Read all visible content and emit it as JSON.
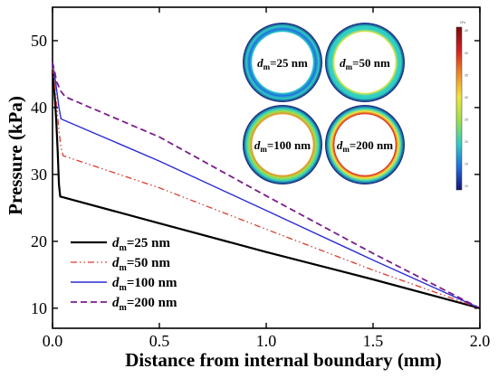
{
  "chart_data": {
    "type": "line",
    "xlabel": "Distance from internal boundary (mm)",
    "ylabel": "Pressure (kPa)",
    "xlim": [
      0,
      2.0
    ],
    "ylim": [
      7,
      55
    ],
    "xticks": [
      0.0,
      0.5,
      1.0,
      1.5,
      2.0
    ],
    "xtick_labels": [
      "0.0",
      "0.5",
      "1.0",
      "1.5",
      "2.0"
    ],
    "yticks": [
      10,
      20,
      30,
      40,
      50
    ],
    "ytick_labels": [
      "10",
      "20",
      "30",
      "40",
      "50"
    ],
    "grid": false,
    "legend_position": "bottom-left",
    "series": [
      {
        "name_main": "d",
        "name_sub": "m",
        "name_rest": "=25 nm",
        "color": "#000000",
        "dash": "",
        "width": 2.2,
        "x": [
          0.0,
          0.006,
          0.012,
          0.018,
          0.024,
          0.03,
          0.036,
          0.5,
          1.0,
          1.5,
          2.0
        ],
        "y": [
          45.6,
          43.5,
          41.0,
          37.8,
          33.5,
          28.5,
          26.7,
          22.7,
          18.4,
          14.3,
          10.0
        ]
      },
      {
        "name_main": "d",
        "name_sub": "m",
        "name_rest": "=50 nm",
        "color": "#d83b2c",
        "dash": "7,3,1.5,3,1.5,3",
        "width": 1.3,
        "x": [
          0.0,
          0.01,
          0.02,
          0.03,
          0.04,
          0.05,
          0.5,
          1.0,
          1.5,
          2.0
        ],
        "y": [
          46.0,
          43.5,
          40.2,
          36.5,
          34.0,
          32.8,
          28.0,
          21.8,
          15.7,
          10.0
        ]
      },
      {
        "name_main": "d",
        "name_sub": "m",
        "name_rest": "=100 nm",
        "color": "#2b2bd6",
        "dash": "",
        "width": 1.4,
        "x": [
          0.0,
          0.01,
          0.02,
          0.03,
          0.04,
          0.5,
          1.0,
          1.5,
          2.0
        ],
        "y": [
          46.4,
          44.8,
          42.5,
          40.0,
          38.3,
          32.0,
          24.6,
          17.2,
          10.0
        ]
      },
      {
        "name_main": "d",
        "name_sub": "m",
        "name_rest": "=200 nm",
        "color": "#7a1e8c",
        "dash": "7,4",
        "width": 1.8,
        "x": [
          0.0,
          0.01,
          0.02,
          0.04,
          0.06,
          0.5,
          1.0,
          1.5,
          2.0
        ],
        "y": [
          46.8,
          45.3,
          43.8,
          42.4,
          41.6,
          35.6,
          26.8,
          18.2,
          10.0
        ]
      }
    ]
  },
  "inset": {
    "rings": [
      {
        "label_main": "d",
        "label_sub": "m",
        "label_rest": "=25 nm",
        "level": 0.35
      },
      {
        "label_main": "d",
        "label_sub": "m",
        "label_rest": "=50 nm",
        "level": 0.5
      },
      {
        "label_main": "d",
        "label_sub": "m",
        "label_rest": "=100 nm",
        "level": 0.7
      },
      {
        "label_main": "d",
        "label_sub": "m",
        "label_rest": "=200 nm",
        "level": 0.85
      }
    ],
    "colorbar": {
      "unit": "kPa",
      "tick_labels": [
        "45",
        "40",
        "35",
        "30",
        "25",
        "20",
        "15",
        "10"
      ],
      "colors": [
        "#7a0a0a",
        "#d81e1e",
        "#f08a22",
        "#f2e63a",
        "#9fe04a",
        "#2fd0c4",
        "#1f6fe0",
        "#13137a"
      ]
    }
  }
}
